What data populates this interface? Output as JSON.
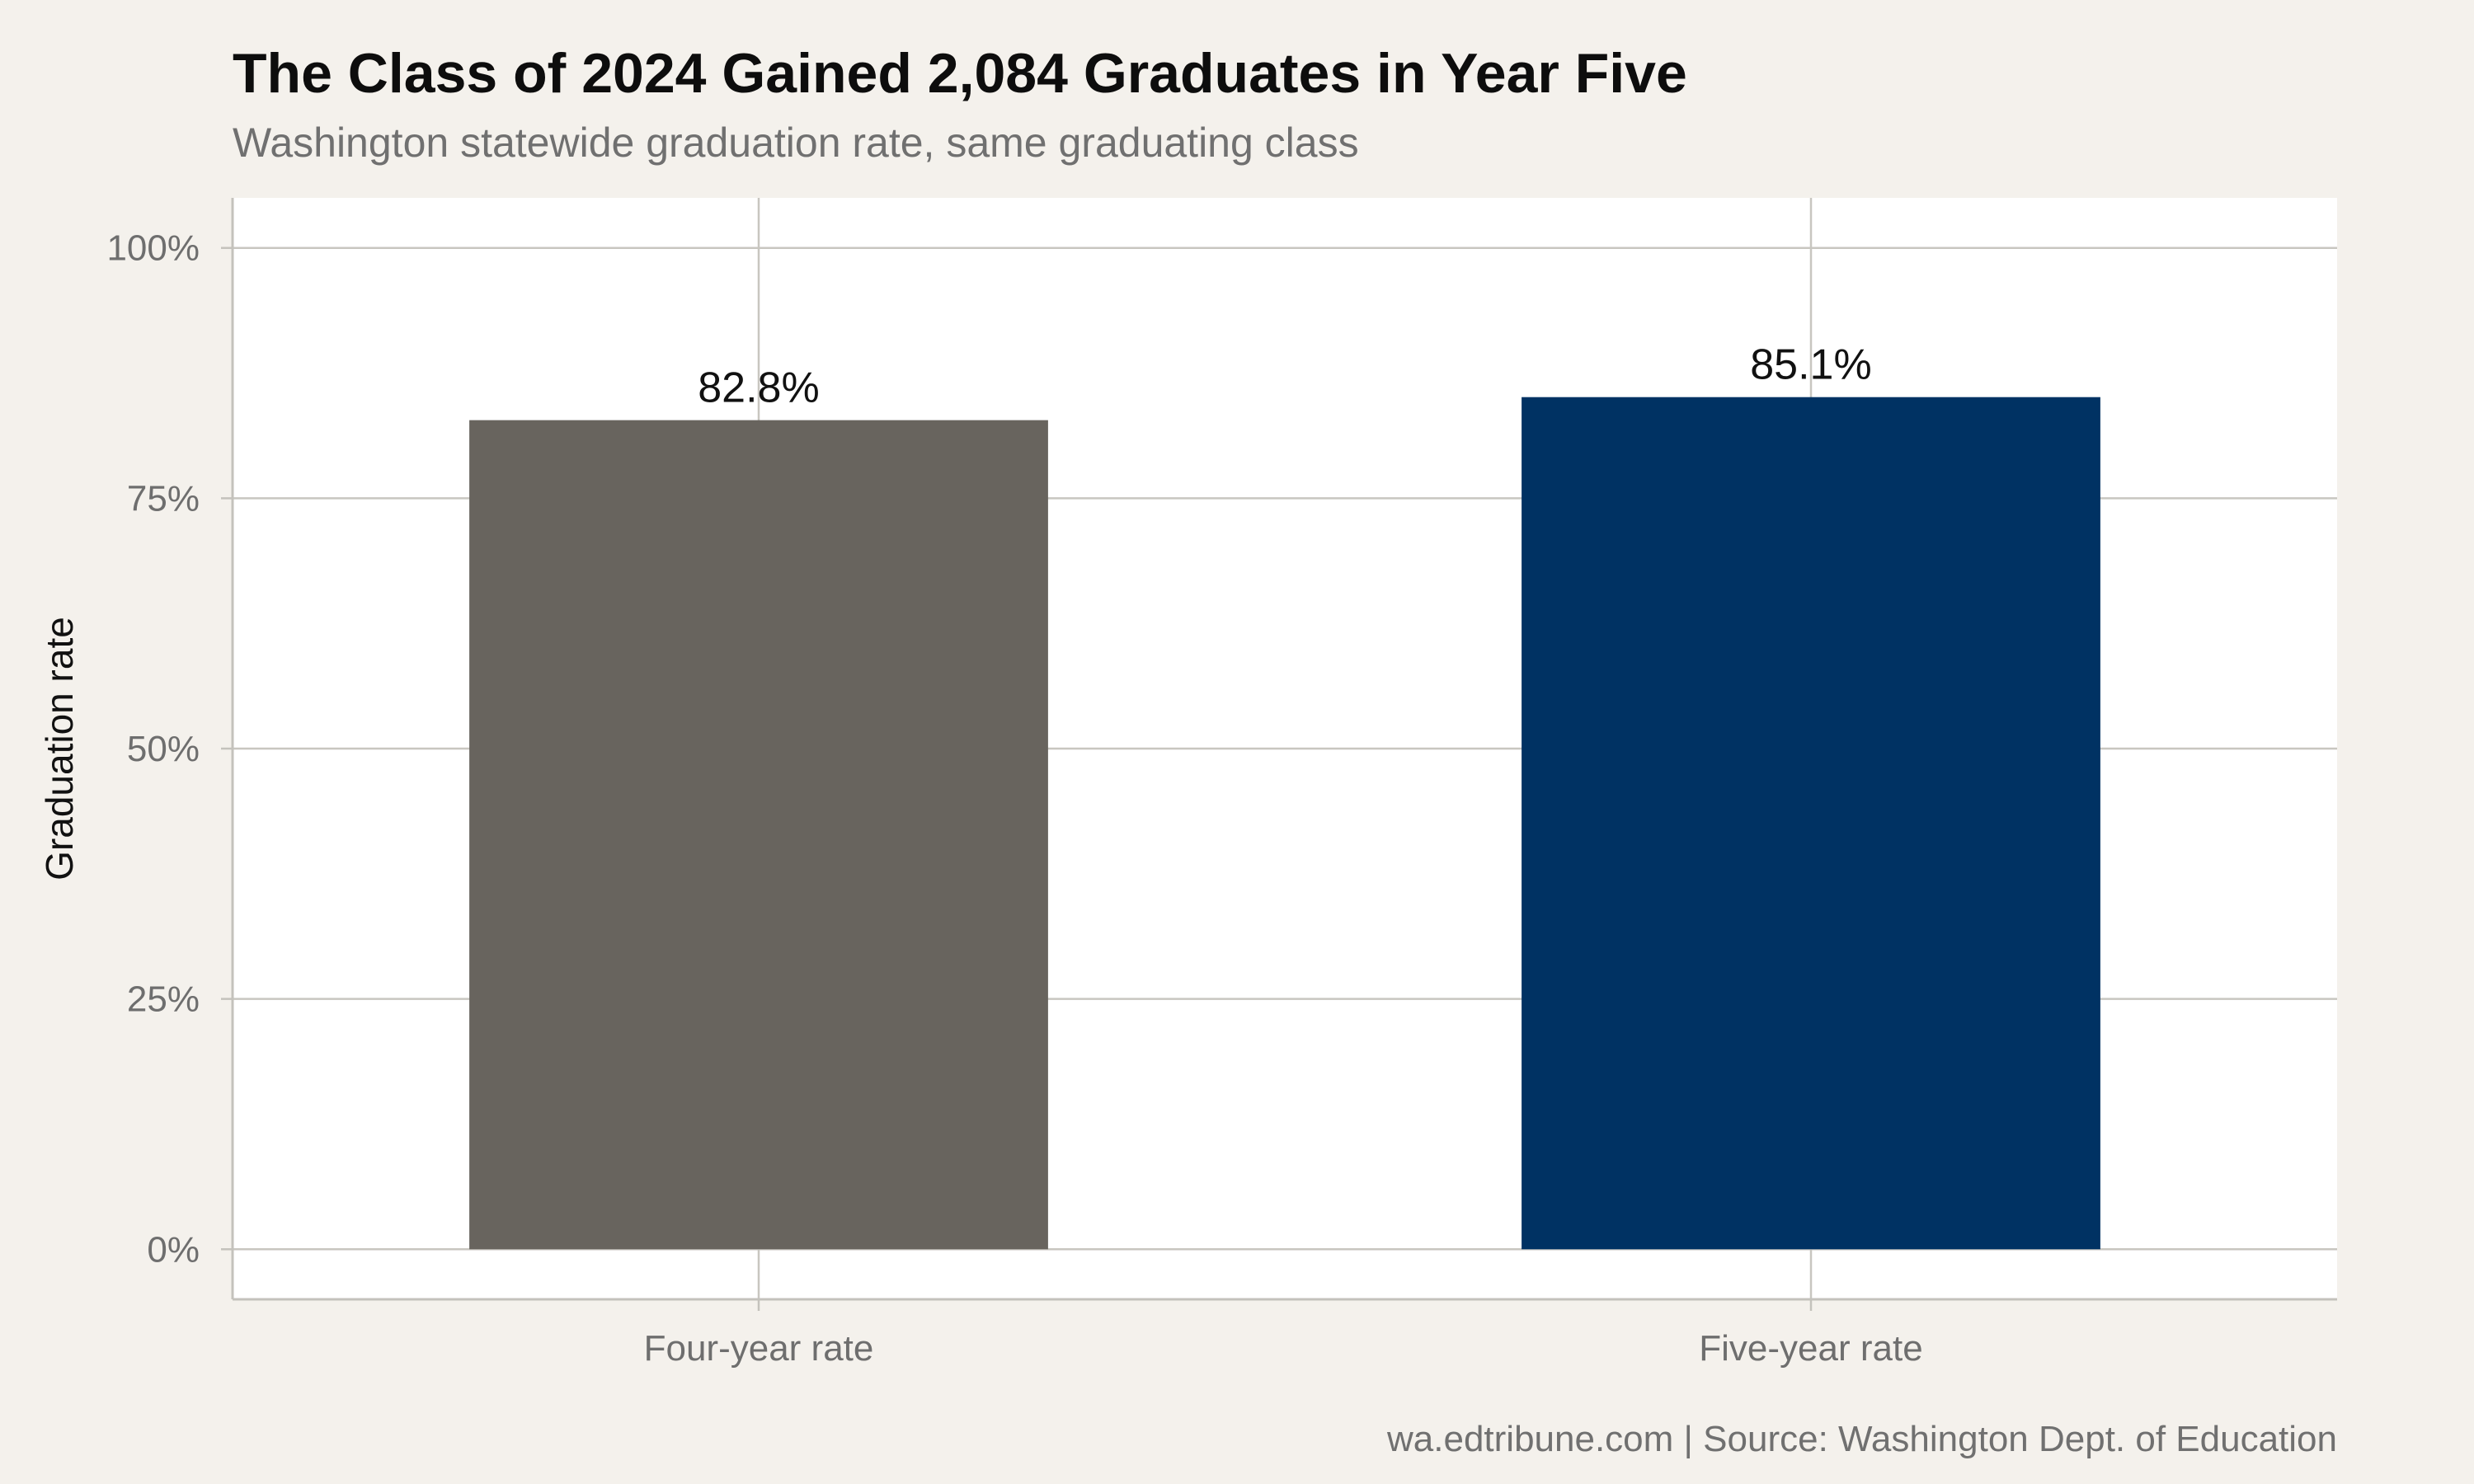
{
  "chart_data": {
    "type": "bar",
    "title": "The Class of 2024 Gained 2,084 Graduates in Year Five",
    "subtitle": "Washington statewide graduation rate, same graduating class",
    "categories": [
      "Four-year rate",
      "Five-year rate"
    ],
    "values": [
      82.8,
      85.1
    ],
    "data_labels": [
      "82.8%",
      "85.1%"
    ],
    "bar_colors": [
      "#68645e",
      "#003263"
    ],
    "xlabel": "",
    "ylabel": "Graduation rate",
    "ylim": [
      -5,
      105
    ],
    "yticks": [
      0,
      25,
      50,
      75,
      100
    ],
    "ytick_labels": [
      "0%",
      "25%",
      "50%",
      "75%",
      "100%"
    ],
    "grid": true,
    "legend": "none",
    "caption": "wa.edtribune.com | Source: Washington Dept. of Education",
    "colors": {
      "background": "#f4f1ec",
      "panel": "#ffffff",
      "grid": "#c8c6c0",
      "axis": "#c4c2bc"
    }
  }
}
